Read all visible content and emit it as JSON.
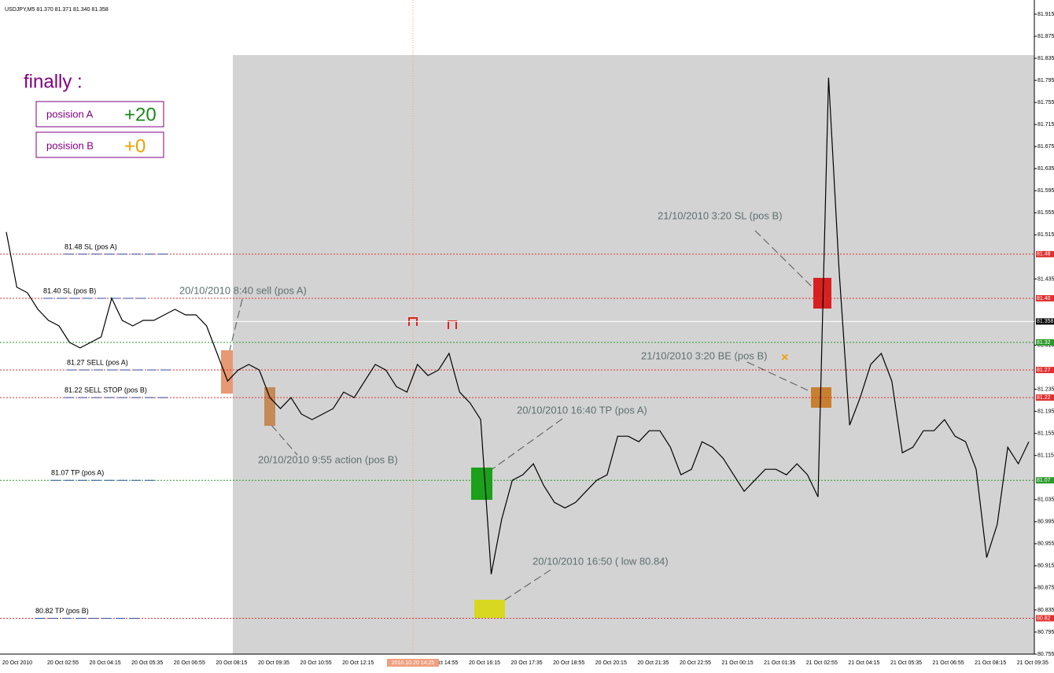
{
  "header": "USDJPY,M5  81.370 81.371 81.340 81.358",
  "summary": {
    "title": "finally :",
    "rows": [
      {
        "label": "posision A",
        "value": "+20"
      },
      {
        "label": "posision B",
        "value": "+0"
      }
    ]
  },
  "chart_data": {
    "type": "line",
    "series": [
      {
        "color": "#000000",
        "values": [
          81.52,
          81.42,
          81.41,
          81.38,
          81.36,
          81.35,
          81.32,
          81.31,
          81.32,
          81.33,
          81.4,
          81.36,
          81.35,
          81.36,
          81.36,
          81.37,
          81.38,
          81.37,
          81.37,
          81.35,
          81.3,
          81.25,
          81.27,
          81.28,
          81.27,
          81.22,
          81.2,
          81.22,
          81.19,
          81.18,
          81.19,
          81.2,
          81.23,
          81.22,
          81.25,
          81.28,
          81.27,
          81.24,
          81.23,
          81.28,
          81.26,
          81.27,
          81.3,
          81.23,
          81.21,
          81.18,
          80.9,
          81.0,
          81.07,
          81.08,
          81.1,
          81.06,
          81.03,
          81.02,
          81.03,
          81.05,
          81.07,
          81.08,
          81.15,
          81.15,
          81.14,
          81.16,
          81.16,
          81.13,
          81.08,
          81.09,
          81.14,
          81.13,
          81.11,
          81.08,
          81.05,
          81.07,
          81.09,
          81.09,
          81.08,
          81.1,
          81.08,
          81.04,
          81.8,
          81.45,
          81.17,
          81.22,
          81.28,
          81.3,
          81.25,
          81.12,
          81.13,
          81.16,
          81.16,
          81.18,
          81.15,
          81.14,
          81.09,
          80.93,
          80.99,
          81.13,
          81.1,
          81.14
        ]
      }
    ],
    "ylim": [
      80.755,
      81.915
    ],
    "yticks": [
      81.915,
      81.875,
      81.835,
      81.795,
      81.755,
      81.715,
      81.675,
      81.635,
      81.595,
      81.555,
      81.515,
      81.435,
      81.315,
      81.235,
      81.195,
      81.155,
      81.115,
      81.035,
      80.995,
      80.955,
      80.915,
      80.875,
      80.835,
      80.795,
      80.755
    ],
    "time_axis": [
      "20 Oct 2010",
      "20 Oct 02:55",
      "20 Oct 04:15",
      "20 Oct 05:35",
      "20 Oct 06:55",
      "20 Oct 08:15",
      "20 Oct 09:35",
      "20 Oct 10:55",
      "20 Oct 12:15",
      null,
      "20 Oct 14:55",
      "20 Oct 16:15",
      "20 Oct 17:35",
      "20 Oct 18:55",
      "20 Oct 20:15",
      "20 Oct 21:35",
      "20 Oct 22:55",
      "21 Oct 00:15",
      "21 Oct 01:35",
      "21 Oct 02:55",
      "21 Oct 04:15",
      "21 Oct 05:35",
      "21 Oct 06:55",
      "21 Oct 08:15",
      "21 Oct 09:35"
    ],
    "cursor_time": "2010.10.20 14:25",
    "levels": [
      {
        "value": 81.48,
        "tag": "81.48",
        "label": "81.48  SL  (pos A)",
        "color": "#e03030"
      },
      {
        "value": 81.4,
        "tag": "81.40",
        "label": "81.40 SL (pos B)",
        "color": "#e03030"
      },
      {
        "value": 81.358,
        "tag": "81.358",
        "color": "#ffffff"
      },
      {
        "value": 81.32,
        "tag": "81.32",
        "color": "#2a9a2a"
      },
      {
        "value": 81.27,
        "tag": "81.27",
        "label": "81.27 SELL  (pos A)",
        "color": "#e03030"
      },
      {
        "value": 81.22,
        "tag": "81.22",
        "label": "81.22  SELL STOP (pos B)",
        "color": "#e03030"
      },
      {
        "value": 81.07,
        "tag": "81.07",
        "label": "81.07 TP (pos A)",
        "color": "#2a9a2a"
      },
      {
        "value": 80.82,
        "tag": "80.82",
        "label": "80.82 TP (pos B)",
        "color": "#e03030"
      }
    ],
    "annotations": [
      "20/10/2010  8:40  sell  (pos A)",
      "20/10/2010   9:55  action (pos B)",
      "20/10/2010   16:40   TP  (pos A)",
      "20/10/2010 16:50  ( low  80.84)",
      "21/10/2010  3:20   SL (pos B)",
      "21/10/2010  3:20  BE  (pos B)"
    ]
  }
}
